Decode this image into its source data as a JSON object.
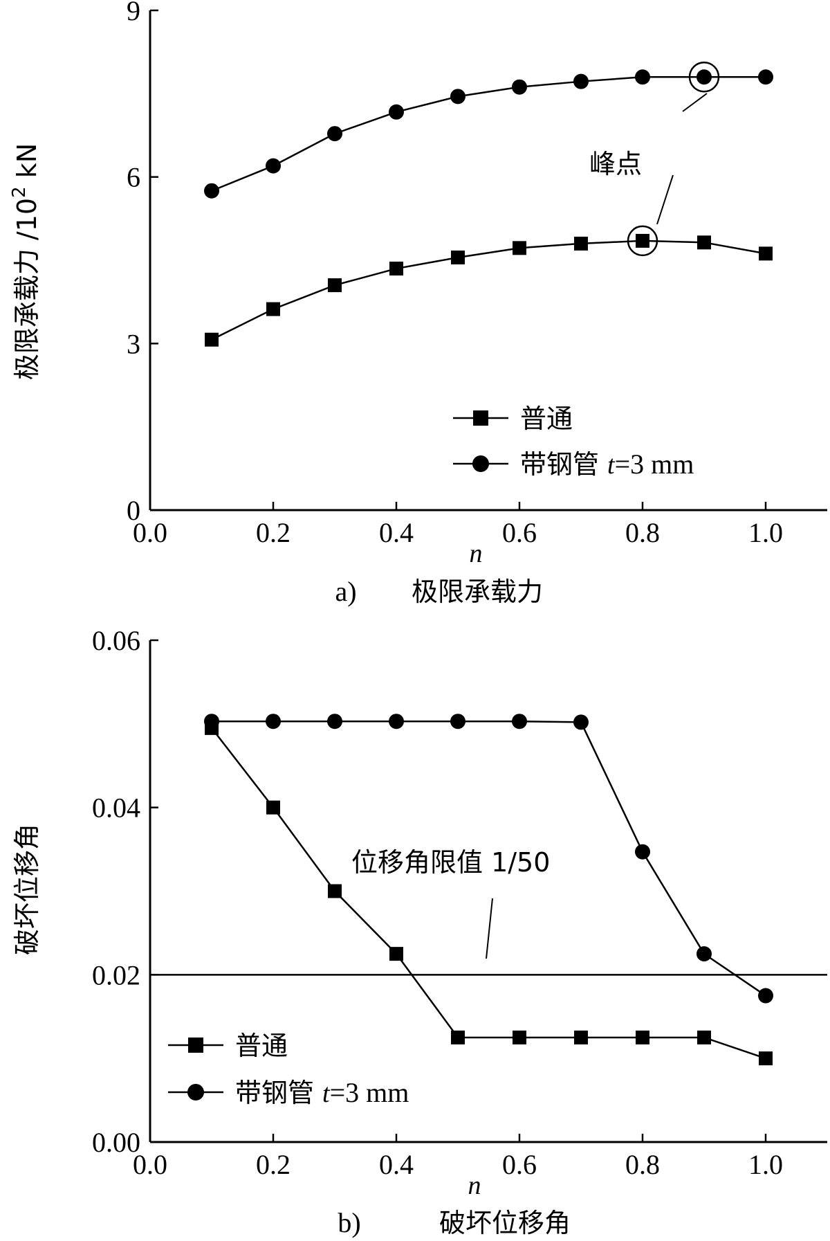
{
  "chart_data": [
    {
      "type": "line",
      "ylabel": "极限承载力 /10",
      "ylabel_sup": "2",
      "ylabel_unit": " kN",
      "xlabel": "n",
      "caption_prefix": "a)",
      "caption": "极限承载力",
      "xlim": [
        0,
        1.1
      ],
      "ylim": [
        0,
        9
      ],
      "xticks": [
        "0.0",
        "0.2",
        "0.4",
        "0.6",
        "0.8",
        "1.0"
      ],
      "yticks": [
        "0",
        "3",
        "6",
        "9"
      ],
      "series": [
        {
          "name": "普通",
          "marker": "square",
          "x": [
            0.1,
            0.2,
            0.3,
            0.4,
            0.5,
            0.6,
            0.7,
            0.8,
            0.9,
            1.0
          ],
          "y": [
            3.07,
            3.62,
            4.05,
            4.35,
            4.55,
            4.72,
            4.8,
            4.85,
            4.82,
            4.62
          ]
        },
        {
          "name": "带钢管",
          "name_italic": "t",
          "name_suffix": "=3 mm",
          "marker": "circle",
          "x": [
            0.1,
            0.2,
            0.3,
            0.4,
            0.5,
            0.6,
            0.7,
            0.8,
            0.9,
            1.0
          ],
          "y": [
            5.75,
            6.2,
            6.78,
            7.17,
            7.45,
            7.62,
            7.72,
            7.8,
            7.8,
            7.8
          ]
        }
      ],
      "annotations": [
        {
          "text": "峰点",
          "targets": [
            [
              0.9,
              7.8
            ],
            [
              0.8,
              4.85
            ]
          ]
        }
      ],
      "legend": "bottom-right"
    },
    {
      "type": "line",
      "ylabel": "破坏位移角",
      "xlabel": "n",
      "caption_prefix": "b)",
      "caption": "破坏位移角",
      "xlim": [
        0,
        1.1
      ],
      "ylim": [
        0,
        0.06
      ],
      "xticks": [
        "0.0",
        "0.2",
        "0.4",
        "0.6",
        "0.8",
        "1.0"
      ],
      "yticks": [
        "0.00",
        "0.02",
        "0.04",
        "0.06"
      ],
      "series": [
        {
          "name": "普通",
          "marker": "square",
          "x": [
            0.1,
            0.2,
            0.3,
            0.4,
            0.5,
            0.6,
            0.7,
            0.8,
            0.9,
            1.0
          ],
          "y": [
            0.0495,
            0.04,
            0.03,
            0.0225,
            0.0125,
            0.0125,
            0.0125,
            0.0125,
            0.0125,
            0.01
          ]
        },
        {
          "name": "带钢管",
          "name_italic": "t",
          "name_suffix": "=3 mm",
          "marker": "circle",
          "x": [
            0.1,
            0.2,
            0.3,
            0.4,
            0.5,
            0.6,
            0.7,
            0.8,
            0.9,
            1.0
          ],
          "y": [
            0.0503,
            0.0503,
            0.0503,
            0.0503,
            0.0503,
            0.0503,
            0.0502,
            0.0347,
            0.0225,
            0.0175
          ]
        }
      ],
      "reference_line": {
        "y": 0.02,
        "label": "位移角限值 1/50"
      },
      "legend": "bottom-left"
    }
  ]
}
